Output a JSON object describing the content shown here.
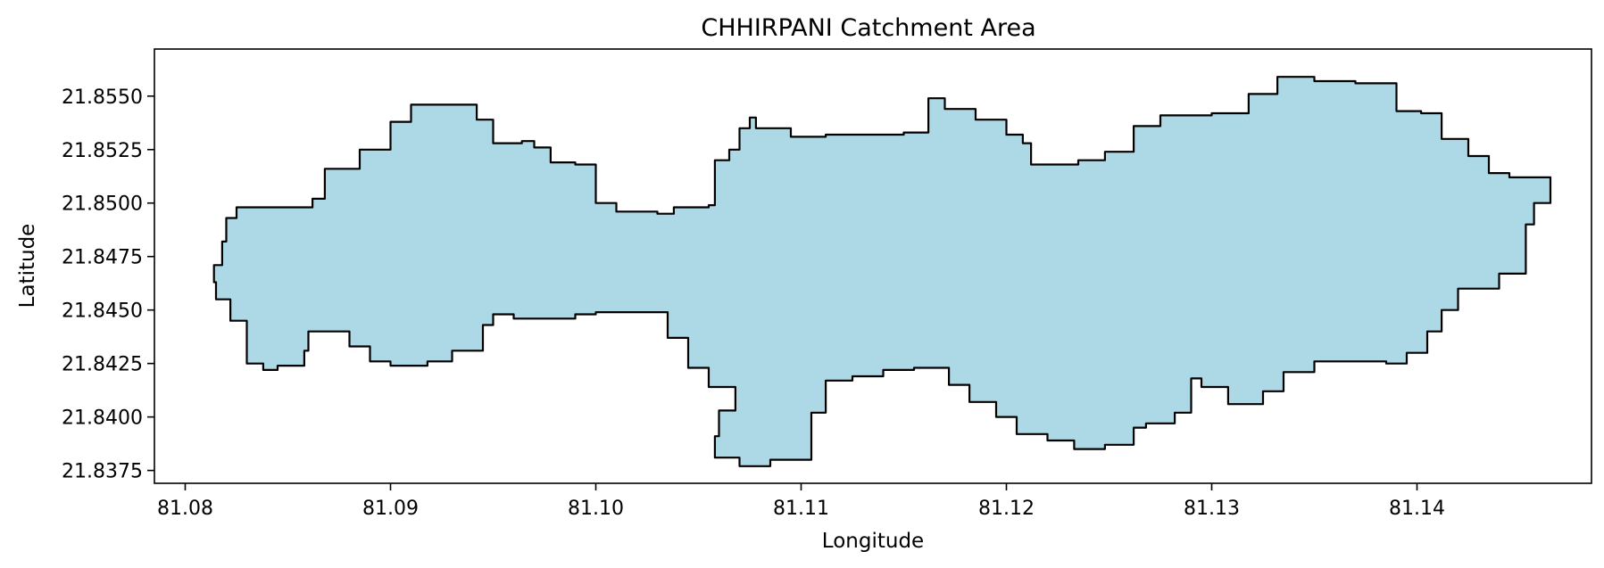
{
  "chart_data": {
    "type": "map",
    "title": "CHHIRPANI Catchment Area",
    "xlabel": "Longitude",
    "ylabel": "Latitude",
    "xlim": [
      81.0785,
      81.1485
    ],
    "ylim": [
      21.8369,
      21.8572
    ],
    "x_ticks": [
      81.08,
      81.09,
      81.1,
      81.11,
      81.12,
      81.13,
      81.14
    ],
    "x_tick_labels": [
      "81.08",
      "81.09",
      "81.10",
      "81.11",
      "81.12",
      "81.13",
      "81.14"
    ],
    "y_ticks": [
      21.8375,
      21.84,
      21.8425,
      21.845,
      21.8475,
      21.85,
      21.8525,
      21.855
    ],
    "y_tick_labels": [
      "21.8375",
      "21.8400",
      "21.8425",
      "21.8450",
      "21.8475",
      "21.8500",
      "21.8525",
      "21.8550"
    ],
    "grid": false,
    "fill_color": "#add8e6",
    "edge_color": "#000000",
    "polygon": [
      [
        81.0814,
        21.8471
      ],
      [
        81.0818,
        21.8482
      ],
      [
        81.082,
        21.8493
      ],
      [
        81.0825,
        21.8498
      ],
      [
        81.0862,
        21.8502
      ],
      [
        81.0868,
        21.8516
      ],
      [
        81.0885,
        21.8525
      ],
      [
        81.09,
        21.8538
      ],
      [
        81.091,
        21.8546
      ],
      [
        81.0938,
        21.8546
      ],
      [
        81.0942,
        21.8539
      ],
      [
        81.095,
        21.8528
      ],
      [
        81.0964,
        21.8529
      ],
      [
        81.097,
        21.8526
      ],
      [
        81.0978,
        21.8519
      ],
      [
        81.099,
        21.8518
      ],
      [
        81.1,
        21.85
      ],
      [
        81.101,
        21.8496
      ],
      [
        81.103,
        21.8495
      ],
      [
        81.1038,
        21.8498
      ],
      [
        81.1055,
        21.8499
      ],
      [
        81.1058,
        21.852
      ],
      [
        81.1065,
        21.8525
      ],
      [
        81.107,
        21.8535
      ],
      [
        81.1075,
        21.854
      ],
      [
        81.1078,
        21.8535
      ],
      [
        81.1095,
        21.8531
      ],
      [
        81.1112,
        21.8532
      ],
      [
        81.113,
        21.8532
      ],
      [
        81.115,
        21.8533
      ],
      [
        81.1162,
        21.8549
      ],
      [
        81.117,
        21.8544
      ],
      [
        81.1185,
        21.8539
      ],
      [
        81.12,
        21.8532
      ],
      [
        81.1208,
        21.8528
      ],
      [
        81.1212,
        21.8518
      ],
      [
        81.1235,
        21.852
      ],
      [
        81.1248,
        21.8524
      ],
      [
        81.1262,
        21.8536
      ],
      [
        81.1275,
        21.8541
      ],
      [
        81.13,
        21.8542
      ],
      [
        81.1318,
        21.8551
      ],
      [
        81.1332,
        21.8559
      ],
      [
        81.135,
        21.8557
      ],
      [
        81.137,
        21.8556
      ],
      [
        81.139,
        21.8543
      ],
      [
        81.1402,
        21.8542
      ],
      [
        81.1412,
        21.853
      ],
      [
        81.1425,
        21.8522
      ],
      [
        81.1435,
        21.8514
      ],
      [
        81.1445,
        21.8512
      ],
      [
        81.1465,
        21.8512
      ],
      [
        81.1465,
        21.85
      ],
      [
        81.1457,
        21.849
      ],
      [
        81.1453,
        21.8478
      ],
      [
        81.1453,
        21.8467
      ],
      [
        81.144,
        21.846
      ],
      [
        81.142,
        21.845
      ],
      [
        81.1412,
        21.844
      ],
      [
        81.1405,
        21.843
      ],
      [
        81.1395,
        21.8425
      ],
      [
        81.1385,
        21.8426
      ],
      [
        81.137,
        21.8426
      ],
      [
        81.135,
        21.8421
      ],
      [
        81.1335,
        21.8412
      ],
      [
        81.1325,
        21.8406
      ],
      [
        81.1308,
        21.8414
      ],
      [
        81.1295,
        21.8418
      ],
      [
        81.129,
        21.8402
      ],
      [
        81.1282,
        21.8397
      ],
      [
        81.1268,
        21.8395
      ],
      [
        81.1262,
        21.8387
      ],
      [
        81.1248,
        21.8385
      ],
      [
        81.1233,
        21.8389
      ],
      [
        81.122,
        21.8392
      ],
      [
        81.1205,
        21.84
      ],
      [
        81.1195,
        21.8407
      ],
      [
        81.1182,
        21.8415
      ],
      [
        81.1172,
        21.8423
      ],
      [
        81.1155,
        21.8422
      ],
      [
        81.114,
        21.8419
      ],
      [
        81.1125,
        21.8417
      ],
      [
        81.1112,
        21.8402
      ],
      [
        81.1105,
        21.838
      ],
      [
        81.1085,
        21.8377
      ],
      [
        81.107,
        21.8381
      ],
      [
        81.1058,
        21.8391
      ],
      [
        81.106,
        21.8403
      ],
      [
        81.1068,
        21.8414
      ],
      [
        81.1055,
        21.8423
      ],
      [
        81.1045,
        21.8437
      ],
      [
        81.1035,
        21.8449
      ],
      [
        81.1,
        21.8448
      ],
      [
        81.099,
        21.8446
      ],
      [
        81.096,
        21.8448
      ],
      [
        81.095,
        21.8443
      ],
      [
        81.0945,
        21.8431
      ],
      [
        81.093,
        21.8426
      ],
      [
        81.0918,
        21.8424
      ],
      [
        81.09,
        21.8426
      ],
      [
        81.089,
        21.8433
      ],
      [
        81.088,
        21.844
      ],
      [
        81.0868,
        21.844
      ],
      [
        81.086,
        21.8431
      ],
      [
        81.0858,
        21.8424
      ],
      [
        81.0845,
        21.8422
      ],
      [
        81.0838,
        21.8425
      ],
      [
        81.083,
        21.8445
      ],
      [
        81.0822,
        21.8455
      ],
      [
        81.0815,
        21.8463
      ]
    ]
  }
}
